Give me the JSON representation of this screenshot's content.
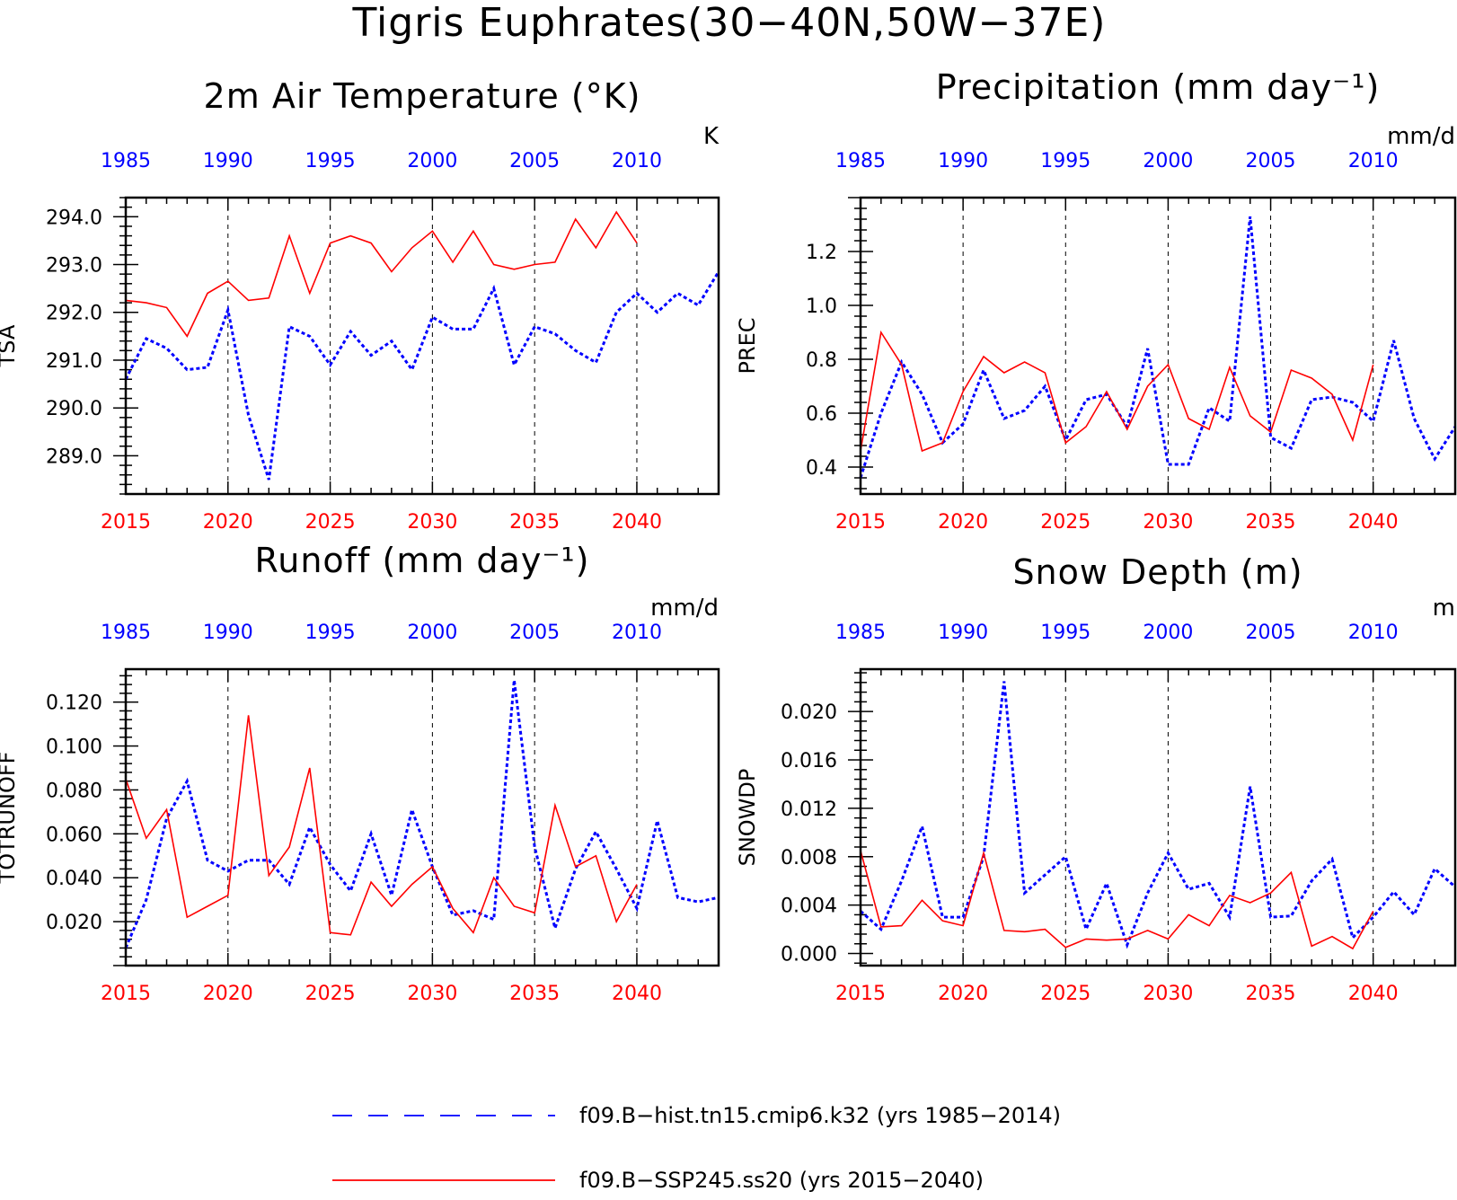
{
  "title": "Tigris Euphrates(30−40N,50W−37E)",
  "colors": {
    "hist": "#0000ff",
    "ssp": "#ff0000",
    "axis": "#000000"
  },
  "legend": [
    {
      "key": "hist",
      "label": "f09.B−hist.tn15.cmip6.k32 (yrs 1985−2014)",
      "style": "dashed"
    },
    {
      "key": "ssp",
      "label": "f09.B−SSP245.ss20 (yrs 2015−2040)",
      "style": "solid"
    }
  ],
  "chart_data": [
    {
      "type": "line",
      "title": "2m Air Temperature (°K)",
      "ylabel": "TSA",
      "units": "K",
      "xlim": [
        2015,
        2044
      ],
      "ylim": [
        288.2,
        294.4
      ],
      "yticks": [
        289.0,
        290.0,
        291.0,
        292.0,
        293.0,
        294.0
      ],
      "ytick_labels": [
        "289.0",
        "290.0",
        "291.0",
        "292.0",
        "293.0",
        "294.0"
      ],
      "bottom_axis": {
        "ticks": [
          2015,
          2020,
          2025,
          2030,
          2035,
          2040
        ],
        "labels": [
          "2015",
          "2020",
          "2025",
          "2030",
          "2035",
          "2040"
        ]
      },
      "top_axis": {
        "labels": [
          "1985",
          "1990",
          "1995",
          "2000",
          "2005",
          "2010"
        ]
      },
      "grid": "dashed vertical at bottom-axis ticks",
      "series": [
        {
          "key": "hist",
          "style": "dashed",
          "x": [
            2015,
            2016,
            2017,
            2018,
            2019,
            2020,
            2021,
            2022,
            2023,
            2024,
            2025,
            2026,
            2027,
            2028,
            2029,
            2030,
            2031,
            2032,
            2033,
            2034,
            2035,
            2036,
            2037,
            2038,
            2039,
            2040,
            2041,
            2042,
            2043,
            2044
          ],
          "values": [
            290.6,
            291.45,
            291.25,
            290.8,
            290.85,
            292.05,
            289.85,
            288.5,
            291.7,
            291.5,
            290.9,
            291.6,
            291.1,
            291.4,
            290.8,
            291.9,
            291.65,
            291.65,
            292.5,
            290.9,
            291.7,
            291.55,
            291.2,
            290.95,
            292.0,
            292.4,
            292.0,
            292.4,
            292.15,
            292.85
          ]
        },
        {
          "key": "ssp",
          "style": "solid",
          "x": [
            2015,
            2016,
            2017,
            2018,
            2019,
            2020,
            2021,
            2022,
            2023,
            2024,
            2025,
            2026,
            2027,
            2028,
            2029,
            2030,
            2031,
            2032,
            2033,
            2034,
            2035,
            2036,
            2037,
            2038,
            2039,
            2040
          ],
          "values": [
            292.25,
            292.2,
            292.1,
            291.5,
            292.4,
            292.65,
            292.25,
            292.3,
            293.6,
            292.4,
            293.45,
            293.6,
            293.45,
            292.85,
            293.35,
            293.7,
            293.05,
            293.7,
            293.0,
            292.9,
            293.0,
            293.05,
            293.95,
            293.35,
            294.1,
            293.45
          ]
        }
      ]
    },
    {
      "type": "line",
      "title": "Precipitation (mm day⁻¹)",
      "ylabel": "PREC",
      "units": "mm/d",
      "xlim": [
        2015,
        2044
      ],
      "ylim": [
        0.3,
        1.4
      ],
      "yticks": [
        0.4,
        0.6,
        0.8,
        1.0,
        1.2
      ],
      "ytick_labels": [
        "0.4",
        "0.6",
        "0.8",
        "1.0",
        "1.2"
      ],
      "bottom_axis": {
        "ticks": [
          2015,
          2020,
          2025,
          2030,
          2035,
          2040
        ],
        "labels": [
          "2015",
          "2020",
          "2025",
          "2030",
          "2035",
          "2040"
        ]
      },
      "top_axis": {
        "labels": [
          "1985",
          "1990",
          "1995",
          "2000",
          "2005",
          "2010"
        ]
      },
      "grid": "dashed vertical at bottom-axis ticks",
      "series": [
        {
          "key": "hist",
          "style": "dashed",
          "x": [
            2015,
            2016,
            2017,
            2018,
            2019,
            2020,
            2021,
            2022,
            2023,
            2024,
            2025,
            2026,
            2027,
            2028,
            2029,
            2030,
            2031,
            2032,
            2033,
            2034,
            2035,
            2036,
            2037,
            2038,
            2039,
            2040,
            2041,
            2042,
            2043,
            2044
          ],
          "values": [
            0.36,
            0.6,
            0.79,
            0.67,
            0.49,
            0.56,
            0.76,
            0.58,
            0.61,
            0.7,
            0.5,
            0.65,
            0.67,
            0.55,
            0.84,
            0.41,
            0.41,
            0.62,
            0.57,
            1.33,
            0.51,
            0.47,
            0.65,
            0.66,
            0.64,
            0.57,
            0.87,
            0.58,
            0.43,
            0.55
          ]
        },
        {
          "key": "ssp",
          "style": "solid",
          "x": [
            2015,
            2016,
            2017,
            2018,
            2019,
            2020,
            2021,
            2022,
            2023,
            2024,
            2025,
            2026,
            2027,
            2028,
            2029,
            2030,
            2031,
            2032,
            2033,
            2034,
            2035,
            2036,
            2037,
            2038,
            2039,
            2040
          ],
          "values": [
            0.46,
            0.9,
            0.78,
            0.46,
            0.49,
            0.68,
            0.81,
            0.75,
            0.79,
            0.75,
            0.49,
            0.55,
            0.68,
            0.54,
            0.7,
            0.78,
            0.58,
            0.54,
            0.77,
            0.59,
            0.53,
            0.76,
            0.73,
            0.67,
            0.5,
            0.78
          ]
        }
      ]
    },
    {
      "type": "line",
      "title": "Runoff (mm day⁻¹)",
      "ylabel": "TOTRUNOFF",
      "units": "mm/d",
      "xlim": [
        2015,
        2044
      ],
      "ylim": [
        0.0,
        0.135
      ],
      "yticks": [
        0.02,
        0.04,
        0.06,
        0.08,
        0.1,
        0.12
      ],
      "ytick_labels": [
        "0.020",
        "0.040",
        "0.060",
        "0.080",
        "0.100",
        "0.120"
      ],
      "bottom_axis": {
        "ticks": [
          2015,
          2020,
          2025,
          2030,
          2035,
          2040
        ],
        "labels": [
          "2015",
          "2020",
          "2025",
          "2030",
          "2035",
          "2040"
        ]
      },
      "top_axis": {
        "labels": [
          "1985",
          "1990",
          "1995",
          "2000",
          "2005",
          "2010"
        ]
      },
      "grid": "dashed vertical at bottom-axis ticks",
      "series": [
        {
          "key": "hist",
          "style": "dashed",
          "x": [
            2015,
            2016,
            2017,
            2018,
            2019,
            2020,
            2021,
            2022,
            2023,
            2024,
            2025,
            2026,
            2027,
            2028,
            2029,
            2030,
            2031,
            2032,
            2033,
            2034,
            2035,
            2036,
            2037,
            2038,
            2039,
            2040,
            2041,
            2042,
            2043,
            2044
          ],
          "values": [
            0.008,
            0.03,
            0.067,
            0.084,
            0.048,
            0.043,
            0.048,
            0.048,
            0.037,
            0.063,
            0.046,
            0.034,
            0.06,
            0.032,
            0.071,
            0.045,
            0.023,
            0.025,
            0.021,
            0.13,
            0.054,
            0.017,
            0.044,
            0.061,
            0.044,
            0.026,
            0.066,
            0.031,
            0.029,
            0.031
          ]
        },
        {
          "key": "ssp",
          "style": "solid",
          "x": [
            2015,
            2016,
            2017,
            2018,
            2019,
            2020,
            2021,
            2022,
            2023,
            2024,
            2025,
            2026,
            2027,
            2028,
            2029,
            2030,
            2031,
            2032,
            2033,
            2034,
            2035,
            2036,
            2037,
            2038,
            2039,
            2040
          ],
          "values": [
            0.085,
            0.058,
            0.071,
            0.022,
            0.027,
            0.032,
            0.114,
            0.041,
            0.054,
            0.09,
            0.015,
            0.014,
            0.038,
            0.027,
            0.037,
            0.045,
            0.026,
            0.015,
            0.04,
            0.027,
            0.024,
            0.073,
            0.045,
            0.05,
            0.02,
            0.037
          ]
        }
      ]
    },
    {
      "type": "line",
      "title": "Snow Depth (m)",
      "ylabel": "SNOWDP",
      "units": "m",
      "xlim": [
        2015,
        2044
      ],
      "ylim": [
        -0.001,
        0.0235
      ],
      "yticks": [
        0.0,
        0.004,
        0.008,
        0.012,
        0.016,
        0.02
      ],
      "ytick_labels": [
        "0.000",
        "0.004",
        "0.008",
        "0.012",
        "0.016",
        "0.020"
      ],
      "bottom_axis": {
        "ticks": [
          2015,
          2020,
          2025,
          2030,
          2035,
          2040
        ],
        "labels": [
          "2015",
          "2020",
          "2025",
          "2030",
          "2035",
          "2040"
        ]
      },
      "top_axis": {
        "labels": [
          "1985",
          "1990",
          "1995",
          "2000",
          "2005",
          "2010"
        ]
      },
      "grid": "dashed vertical at bottom-axis ticks",
      "series": [
        {
          "key": "hist",
          "style": "dashed",
          "x": [
            2015,
            2016,
            2017,
            2018,
            2019,
            2020,
            2021,
            2022,
            2023,
            2024,
            2025,
            2026,
            2027,
            2028,
            2029,
            2030,
            2031,
            2032,
            2033,
            2034,
            2035,
            2036,
            2037,
            2038,
            2039,
            2040,
            2041,
            2042,
            2043,
            2044
          ],
          "values": [
            0.0035,
            0.002,
            0.006,
            0.0105,
            0.003,
            0.003,
            0.008,
            0.0225,
            0.005,
            0.0065,
            0.008,
            0.002,
            0.0058,
            0.0007,
            0.005,
            0.0083,
            0.0053,
            0.0058,
            0.003,
            0.0138,
            0.003,
            0.0031,
            0.006,
            0.0078,
            0.0013,
            0.003,
            0.0051,
            0.0032,
            0.007,
            0.0055
          ]
        },
        {
          "key": "ssp",
          "style": "solid",
          "x": [
            2015,
            2016,
            2017,
            2018,
            2019,
            2020,
            2021,
            2022,
            2023,
            2024,
            2025,
            2026,
            2027,
            2028,
            2029,
            2030,
            2031,
            2032,
            2033,
            2034,
            2035,
            2036,
            2037,
            2038,
            2039,
            2040
          ],
          "values": [
            0.0085,
            0.0022,
            0.0023,
            0.0044,
            0.0027,
            0.0023,
            0.0083,
            0.0019,
            0.0018,
            0.002,
            0.0005,
            0.0012,
            0.0011,
            0.0012,
            0.0019,
            0.0012,
            0.0032,
            0.0023,
            0.0048,
            0.0042,
            0.005,
            0.0067,
            0.0006,
            0.0014,
            0.0004,
            0.0035
          ]
        }
      ]
    }
  ]
}
